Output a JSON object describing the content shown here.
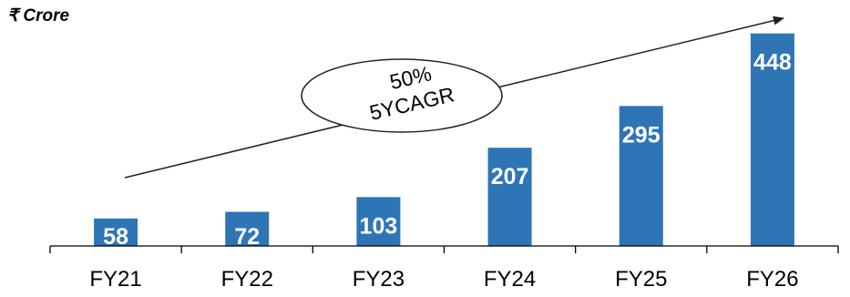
{
  "unit_label": "₹ Crore",
  "annotation": {
    "line1": "50%",
    "line2": "5YCAGR"
  },
  "colors": {
    "bar": "#2e75b6",
    "axis": "#000000",
    "bar_label": "#ffffff"
  },
  "chart_data": {
    "type": "bar",
    "categories": [
      "FY21",
      "FY22",
      "FY23",
      "FY24",
      "FY25",
      "FY26"
    ],
    "values": [
      58,
      72,
      103,
      207,
      295,
      448
    ],
    "ylim": [
      0,
      480
    ],
    "grid": false,
    "data_labels": true,
    "annotation": "50% 5YCAGR"
  }
}
